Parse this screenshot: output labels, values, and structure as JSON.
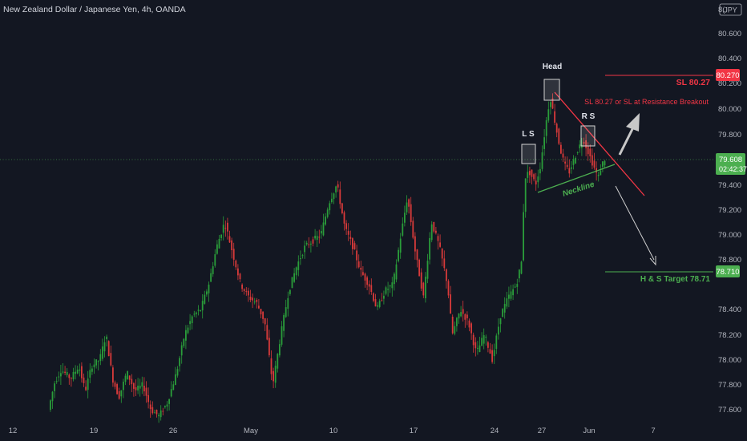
{
  "header": {
    "title": "New Zealand Dollar / Japanese Yen, 4h, OANDA",
    "currency_badge": "JPY",
    "corner_truncated": "8("
  },
  "colors": {
    "background": "#131722",
    "up": "#26a69a",
    "green_candle": "#2a9d3a",
    "red_candle": "#d83a3a",
    "price_green": "#4caf50",
    "stop_red": "#f23645",
    "axis_text": "#b2b5be",
    "annotation_box": "#b8b8b8",
    "arrow": "#c8c8c8"
  },
  "chart_data": {
    "type": "candlestick",
    "y_ticks": [
      "80.600",
      "80.400",
      "80.200",
      "80.000",
      "79.800",
      "79.400",
      "79.200",
      "79.000",
      "78.800",
      "78.400",
      "78.200",
      "78.000",
      "77.800",
      "77.600"
    ],
    "y_range": [
      77.55,
      80.82
    ],
    "x_ticks": [
      "12",
      "19",
      "26",
      "May",
      "10",
      "17",
      "24",
      "27",
      "Jun",
      "7"
    ],
    "current_price": {
      "value": "79.608",
      "countdown": "02:42:37"
    },
    "stop_loss": {
      "value": "80.270",
      "label": "SL 80.27"
    },
    "target": {
      "value": "78.710",
      "label": "H & S Target 78.71"
    },
    "annotations": {
      "head": "Head",
      "left_shoulder": "L S",
      "right_shoulder": "R S",
      "neckline": "Neckline",
      "breakout_note": "SL 80.27 or SL at Resistance Breakout"
    }
  }
}
